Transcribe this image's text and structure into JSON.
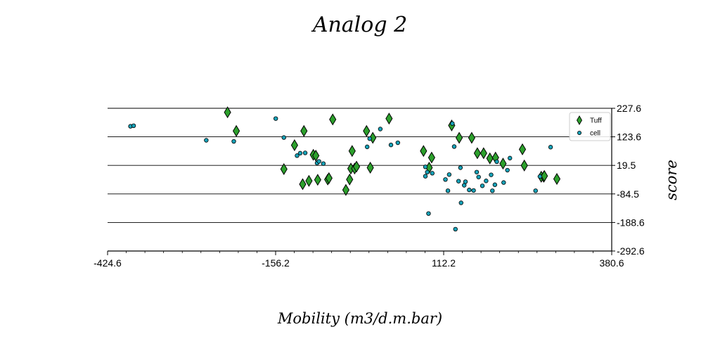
{
  "chart_data": {
    "type": "scatter",
    "title": "Analog 2",
    "xlabel": "Mobility (m3/d.m.bar)",
    "ylabel": "score",
    "xlim": [
      -424.6,
      380.6
    ],
    "ylim": [
      -292.6,
      227.6
    ],
    "x_ticks": [
      "-424.6",
      "-156.2",
      "112.2",
      "380.6"
    ],
    "y_ticks": [
      "227.6",
      "123.6",
      "19.5",
      "-84.5",
      "-188.6",
      "-292.6"
    ],
    "x_tick_values": [
      -424.6,
      -156.2,
      112.2,
      380.6
    ],
    "y_tick_values": [
      227.6,
      123.6,
      19.5,
      -84.5,
      -188.6,
      -292.6
    ],
    "y_axis_position": "right",
    "grid": "horizontal",
    "legend_position": "top-right",
    "series": [
      {
        "name": "Tuff",
        "marker": "diamond",
        "color": "#2ca02c",
        "points": [
          [
            -233,
            213
          ],
          [
            -219,
            145
          ],
          [
            -143,
            6
          ],
          [
            -126,
            93
          ],
          [
            -113,
            -49
          ],
          [
            -111,
            145
          ],
          [
            -103,
            -37
          ],
          [
            -96,
            58
          ],
          [
            -92,
            55
          ],
          [
            -89,
            -33
          ],
          [
            -73,
            -32
          ],
          [
            -71,
            -27
          ],
          [
            -65,
            187
          ],
          [
            -44,
            -70
          ],
          [
            -38,
            -32
          ],
          [
            -36,
            8
          ],
          [
            -34,
            72
          ],
          [
            -30,
            8
          ],
          [
            -27,
            15
          ],
          [
            -11,
            145
          ],
          [
            -5,
            11
          ],
          [
            -1,
            120
          ],
          [
            25,
            190
          ],
          [
            80,
            72
          ],
          [
            89,
            11
          ],
          [
            93,
            48
          ],
          [
            125,
            165
          ],
          [
            137,
            120
          ],
          [
            157,
            120
          ],
          [
            166,
            64
          ],
          [
            176,
            64
          ],
          [
            186,
            45
          ],
          [
            195,
            48
          ],
          [
            207,
            26
          ],
          [
            238,
            78
          ],
          [
            241,
            19
          ],
          [
            268,
            -22
          ],
          [
            272,
            -22
          ],
          [
            273,
            -19
          ],
          [
            293,
            -30
          ]
        ]
      },
      {
        "name": "cell",
        "marker": "circle",
        "color": "#17a2b8",
        "points": [
          [
            -388,
            162
          ],
          [
            -383,
            164
          ],
          [
            -267,
            111
          ],
          [
            -223,
            107
          ],
          [
            -156,
            190
          ],
          [
            -143,
            121
          ],
          [
            -122,
            55
          ],
          [
            -117,
            64
          ],
          [
            -109,
            65
          ],
          [
            -90,
            28
          ],
          [
            -87,
            34
          ],
          [
            -80,
            26
          ],
          [
            -10,
            87
          ],
          [
            -6,
            117
          ],
          [
            11,
            152
          ],
          [
            28,
            94
          ],
          [
            39,
            102
          ],
          [
            83,
            14
          ],
          [
            83,
            -20
          ],
          [
            86,
            -5
          ],
          [
            88,
            -156
          ],
          [
            94,
            -9
          ],
          [
            115,
            -32
          ],
          [
            119,
            -73
          ],
          [
            121,
            -14
          ],
          [
            126,
            172
          ],
          [
            129,
            88
          ],
          [
            131,
            -213
          ],
          [
            136,
            -38
          ],
          [
            139,
            11
          ],
          [
            140,
            -117
          ],
          [
            145,
            -53
          ],
          [
            147,
            -40
          ],
          [
            153,
            -70
          ],
          [
            160,
            -72
          ],
          [
            165,
            -5
          ],
          [
            168,
            -23
          ],
          [
            174,
            -55
          ],
          [
            180,
            -37
          ],
          [
            188,
            -15
          ],
          [
            190,
            -73
          ],
          [
            194,
            -51
          ],
          [
            197,
            33
          ],
          [
            208,
            -43
          ],
          [
            214,
            2
          ],
          [
            218,
            46
          ],
          [
            259,
            -73
          ],
          [
            266,
            -21
          ],
          [
            283,
            86
          ]
        ]
      }
    ]
  }
}
